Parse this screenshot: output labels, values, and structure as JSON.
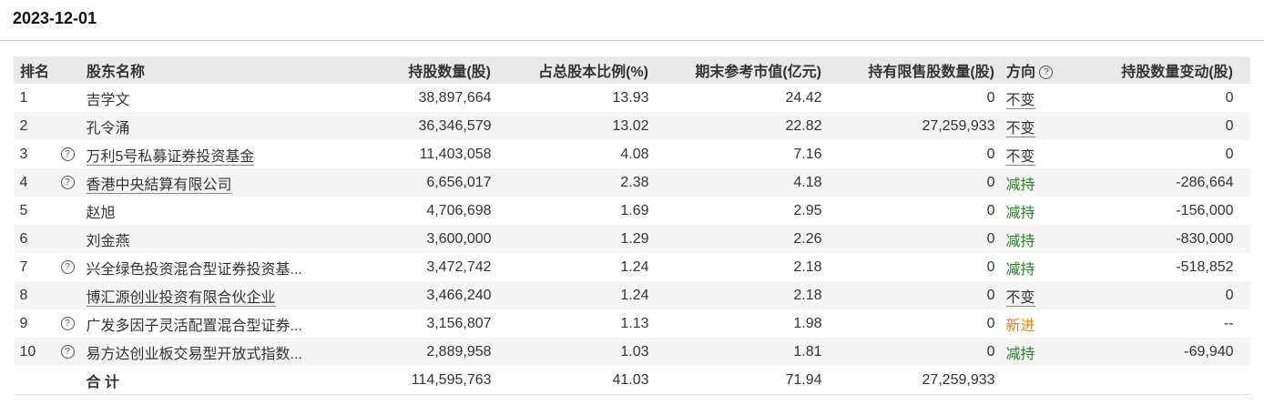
{
  "date": "2023-12-01",
  "headers": {
    "rank": "排名",
    "name": "股东名称",
    "shares": "持股数量(股)",
    "pct": "占总股本比例(%)",
    "value": "期末参考市值(亿元)",
    "restricted": "持有限售股数量(股)",
    "direction": "方向",
    "change": "持股数量变动(股)"
  },
  "colors": {
    "decrease": "#1f8a1f",
    "new": "#f08300",
    "unchanged": "#333333"
  },
  "rows": [
    {
      "rank": "1",
      "help": false,
      "link": false,
      "name": "吉学文",
      "shares": "38,897,664",
      "pct": "13.93",
      "value": "24.42",
      "restricted": "0",
      "direction": "不变",
      "dir_type": "unchanged",
      "change": "0"
    },
    {
      "rank": "2",
      "help": false,
      "link": false,
      "name": "孔令涌",
      "shares": "36,346,579",
      "pct": "13.02",
      "value": "22.82",
      "restricted": "27,259,933",
      "direction": "不变",
      "dir_type": "unchanged",
      "change": "0"
    },
    {
      "rank": "3",
      "help": true,
      "link": true,
      "name": "万利5号私募证券投资基金",
      "shares": "11,403,058",
      "pct": "4.08",
      "value": "7.16",
      "restricted": "0",
      "direction": "不变",
      "dir_type": "unchanged",
      "change": "0"
    },
    {
      "rank": "4",
      "help": true,
      "link": true,
      "name": "香港中央結算有限公司",
      "shares": "6,656,017",
      "pct": "2.38",
      "value": "4.18",
      "restricted": "0",
      "direction": "减持",
      "dir_type": "decrease",
      "change": "-286,664"
    },
    {
      "rank": "5",
      "help": false,
      "link": false,
      "name": "赵旭",
      "shares": "4,706,698",
      "pct": "1.69",
      "value": "2.95",
      "restricted": "0",
      "direction": "减持",
      "dir_type": "decrease",
      "change": "-156,000"
    },
    {
      "rank": "6",
      "help": false,
      "link": false,
      "name": "刘金燕",
      "shares": "3,600,000",
      "pct": "1.29",
      "value": "2.26",
      "restricted": "0",
      "direction": "减持",
      "dir_type": "decrease",
      "change": "-830,000"
    },
    {
      "rank": "7",
      "help": true,
      "link": false,
      "name": "兴全绿色投资混合型证券投资基...",
      "shares": "3,472,742",
      "pct": "1.24",
      "value": "2.18",
      "restricted": "0",
      "direction": "减持",
      "dir_type": "decrease",
      "change": "-518,852"
    },
    {
      "rank": "8",
      "help": false,
      "link": true,
      "name": "博汇源创业投资有限合伙企业",
      "shares": "3,466,240",
      "pct": "1.24",
      "value": "2.18",
      "restricted": "0",
      "direction": "不变",
      "dir_type": "unchanged",
      "change": "0"
    },
    {
      "rank": "9",
      "help": true,
      "link": false,
      "name": "广发多因子灵活配置混合型证券...",
      "shares": "3,156,807",
      "pct": "1.13",
      "value": "1.98",
      "restricted": "0",
      "direction": "新进",
      "dir_type": "new",
      "change": "--"
    },
    {
      "rank": "10",
      "help": true,
      "link": false,
      "name": "易方达创业板交易型开放式指数...",
      "shares": "2,889,958",
      "pct": "1.03",
      "value": "1.81",
      "restricted": "0",
      "direction": "减持",
      "dir_type": "decrease",
      "change": "-69,940"
    }
  ],
  "total": {
    "label": "合 计",
    "shares": "114,595,763",
    "pct": "41.03",
    "value": "71.94",
    "restricted": "27,259,933"
  }
}
